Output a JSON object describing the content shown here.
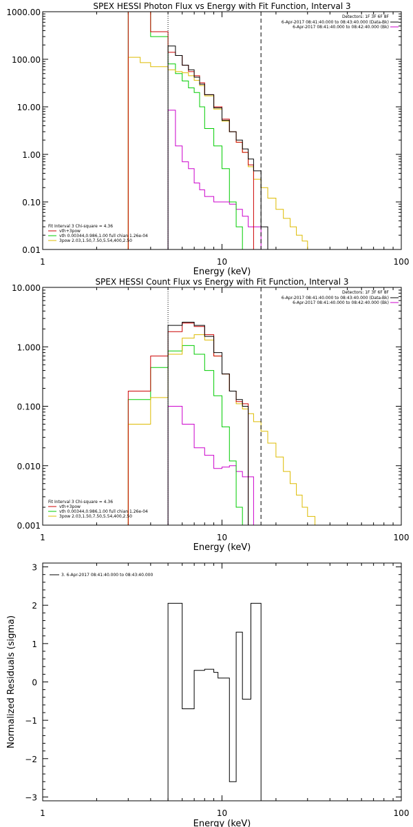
{
  "chart_data": [
    {
      "type": "line",
      "title": "SPEX HESSI Photon Flux vs Energy with Fit Function, Interval 3",
      "xlabel": "Energy (keV)",
      "ylabel": "",
      "xscale": "log",
      "yscale": "log",
      "xlim": [
        1,
        100
      ],
      "ylim": [
        0.01,
        1000
      ],
      "x_tick_labels": [
        "1",
        "10",
        "100"
      ],
      "y_tick_labels": [
        "0.01",
        "0.10",
        "1.00",
        "10.00",
        "100.00",
        "1000.00"
      ],
      "vlines": [
        {
          "x": 5.0,
          "style": "dotted"
        },
        {
          "x": 16.5,
          "style": "dashed"
        }
      ],
      "legend_top_right": {
        "title": "Detectors: 1F 3F 6F 8F",
        "entries": [
          {
            "label": "6-Apr-2017 08:41:40.000 to 08:43:40.000 (Data-Bk)",
            "color": "#000000"
          },
          {
            "label": "6-Apr-2017 08:41:40.000 to 08:42:40.000 (Bk)",
            "color": "#cc00cc"
          }
        ]
      },
      "legend_bottom_left": {
        "title": "Fit Interval 3   Chi-square = 4.36",
        "entries": [
          {
            "label": "vth+3pow",
            "color": "#cc0000"
          },
          {
            "label": "vth 0.00344,0.986,1.00  full chian 1.26e-04",
            "color": "#00cc00"
          },
          {
            "label": "3pow 2.03,1.50,7.50,5.54,400,2.50",
            "color": "#ddbb00"
          }
        ]
      },
      "bin_edges": [
        3.0,
        3.5,
        4.0,
        5.0,
        5.5,
        6.0,
        6.5,
        7.0,
        7.5,
        8.0,
        9.0,
        10.0,
        11.0,
        12.0,
        13.0,
        14.0,
        15.0,
        16.5,
        18.0,
        20.0,
        22.0,
        24.0,
        26.0,
        28.0,
        30.0,
        33.0,
        36.0
      ],
      "series": [
        {
          "name": "Data-Bk",
          "color": "#000000",
          "start_bin": 3,
          "values": [
            190,
            120,
            75,
            60,
            42,
            30,
            18,
            9.5,
            5.2,
            3.0,
            2.0,
            1.3,
            0.8,
            0.45,
            0.03
          ]
        },
        {
          "name": "Bk",
          "color": "#cc00cc",
          "start_bin": 3,
          "values": [
            8.5,
            1.5,
            0.7,
            0.5,
            0.25,
            0.18,
            0.13,
            0.1,
            0.1,
            0.09,
            0.07,
            0.05,
            0.03,
            0.03
          ]
        },
        {
          "name": "vth+3pow",
          "color": "#cc0000",
          "start_bin": 0,
          "values": [
            5000,
            1500,
            380,
            140,
            120,
            75,
            55,
            45,
            32,
            18,
            10,
            5.5,
            3.0,
            1.8,
            1.1,
            0.6
          ]
        },
        {
          "name": "vth",
          "color": "#00cc00",
          "start_bin": 0,
          "values": [
            5000,
            1500,
            300,
            80,
            50,
            35,
            25,
            20,
            10,
            3.5,
            1.5,
            0.5,
            0.1,
            0.03,
            0.01
          ]
        },
        {
          "name": "3pow",
          "color": "#ddbb00",
          "start_bin": 0,
          "values": [
            110,
            85,
            70,
            60,
            55,
            52,
            45,
            36,
            28,
            17,
            9.0,
            5.0,
            3.0,
            1.8,
            1.1,
            0.55,
            0.3,
            0.2,
            0.12,
            0.07,
            0.045,
            0.03,
            0.02,
            0.015,
            0.01,
            0.009
          ]
        }
      ]
    },
    {
      "type": "line",
      "title": "SPEX HESSI Count Flux vs Energy with Fit Function, Interval 3",
      "xlabel": "Energy (keV)",
      "ylabel": "",
      "xscale": "log",
      "yscale": "log",
      "xlim": [
        1,
        100
      ],
      "ylim": [
        0.001,
        10
      ],
      "x_tick_labels": [
        "1",
        "10",
        "100"
      ],
      "y_tick_labels": [
        "0.001",
        "0.010",
        "0.100",
        "1.000",
        "10.000"
      ],
      "vlines": [
        {
          "x": 5.0,
          "style": "dotted"
        },
        {
          "x": 16.5,
          "style": "dashed"
        }
      ],
      "legend_top_right": {
        "title": "Detectors: 1F 3F 6F 8F",
        "entries": [
          {
            "label": "6-Apr-2017 08:41:40.000 to 08:43:40.000 (Data-Bk)",
            "color": "#000000"
          },
          {
            "label": "6-Apr-2017 08:41:40.000 to 08:42:40.000 (Bk)",
            "color": "#cc00cc"
          }
        ]
      },
      "legend_bottom_left": {
        "title": "Fit Interval 3   Chi-square = 4.36",
        "entries": [
          {
            "label": "vth+3pow",
            "color": "#cc0000"
          },
          {
            "label": "vth 0.00344,0.986,1.00  full chian 1.26e-04",
            "color": "#00cc00"
          },
          {
            "label": "3pow 2.03,1.50,7.50,5.54,400,2.50",
            "color": "#ddbb00"
          }
        ]
      },
      "bin_edges": [
        3.0,
        4.0,
        5.0,
        6.0,
        7.0,
        8.0,
        9.0,
        10.0,
        11.0,
        12.0,
        13.0,
        14.0,
        15.0,
        16.5,
        18.0,
        20.0,
        22.0,
        24.0,
        26.0,
        28.0,
        30.0,
        33.0,
        36.0
      ],
      "series": [
        {
          "name": "Data-Bk",
          "color": "#000000",
          "start_bin": 2,
          "values": [
            2.3,
            2.6,
            2.3,
            1.5,
            0.8,
            0.35,
            0.18,
            0.13,
            0.1
          ]
        },
        {
          "name": "Bk",
          "color": "#cc00cc",
          "start_bin": 2,
          "values": [
            0.1,
            0.05,
            0.02,
            0.015,
            0.009,
            0.0095,
            0.01,
            0.008,
            0.0065,
            0.0065
          ]
        },
        {
          "name": "vth+3pow",
          "color": "#cc0000",
          "start_bin": 0,
          "values": [
            0.18,
            0.7,
            1.8,
            2.5,
            2.2,
            1.6,
            0.7,
            0.35,
            0.18,
            0.12,
            0.11
          ]
        },
        {
          "name": "vth",
          "color": "#00cc00",
          "start_bin": 0,
          "values": [
            0.13,
            0.45,
            0.85,
            1.05,
            0.75,
            0.4,
            0.15,
            0.045,
            0.012,
            0.002,
            0.001
          ]
        },
        {
          "name": "3pow",
          "color": "#ddbb00",
          "start_bin": 0,
          "values": [
            0.05,
            0.14,
            0.75,
            1.4,
            1.6,
            1.3,
            0.7,
            0.35,
            0.18,
            0.11,
            0.09,
            0.075,
            0.055,
            0.038,
            0.024,
            0.014,
            0.008,
            0.005,
            0.0032,
            0.002,
            0.0014
          ]
        }
      ]
    },
    {
      "type": "line",
      "title": "",
      "xlabel": "Energy (keV)",
      "ylabel": "Normalized Residuals (sigma)",
      "xscale": "log",
      "yscale": "linear",
      "xlim": [
        1,
        100
      ],
      "ylim": [
        -3.1,
        3.1
      ],
      "x_tick_labels": [
        "1",
        "10",
        "100"
      ],
      "y_tick_labels": [
        "−3",
        "−2",
        "−1",
        "0",
        "1",
        "2",
        "3"
      ],
      "legend_top_left": {
        "entries": [
          {
            "label": "3.  6-Apr-2017 08:41:40.000 to 08:43:40.000",
            "color": "#000000"
          }
        ]
      },
      "bin_edges": [
        5.0,
        6.0,
        7.0,
        8.0,
        9.0,
        9.5,
        10.0,
        11.0,
        12.0,
        13.0,
        14.5,
        16.5
      ],
      "series": [
        {
          "name": "",
          "color": "#000000",
          "start_bin": 0,
          "values": [
            2.05,
            -0.7,
            0.3,
            0.33,
            0.25,
            0.1,
            0.1,
            -2.6,
            1.3,
            -0.45,
            2.05
          ]
        }
      ]
    }
  ]
}
